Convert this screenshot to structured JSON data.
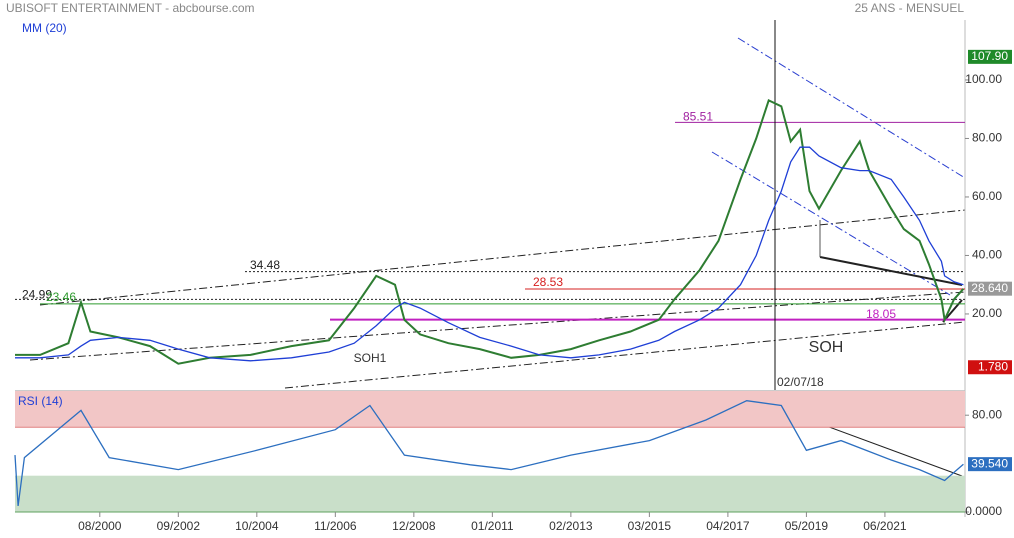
{
  "chart_data": [
    {
      "type": "line",
      "title": "UBISOFT ENTERTAINMENT - abcbourse.com",
      "subtitle": "25 ANS - MENSUEL",
      "x": [
        0,
        8,
        17,
        21,
        24,
        33,
        43,
        52,
        62,
        75,
        88,
        100,
        108,
        115,
        121,
        124,
        129,
        138,
        148,
        158,
        167,
        177,
        186,
        196,
        205,
        210,
        218,
        224,
        231,
        236,
        240,
        244,
        247,
        250,
        253,
        256,
        263,
        269,
        272,
        279,
        283,
        288,
        291,
        295,
        296,
        299,
        302
      ],
      "xlim": [
        0,
        302.5
      ],
      "xticks": [
        {
          "value": 27,
          "label": "08/2000"
        },
        {
          "value": 52,
          "label": "09/2002"
        },
        {
          "value": 77,
          "label": "10/2004"
        },
        {
          "value": 102,
          "label": "11/2006"
        },
        {
          "value": 127,
          "label": "12/2008"
        },
        {
          "value": 152,
          "label": "01/2011"
        },
        {
          "value": 177,
          "label": "02/2013"
        },
        {
          "value": 202,
          "label": "03/2015"
        },
        {
          "value": 227,
          "label": "04/2017"
        },
        {
          "value": 252,
          "label": "05/2019"
        },
        {
          "value": 277,
          "label": "06/2021"
        }
      ],
      "series": [
        {
          "color": "#2e7d32",
          "values": [
            6,
            6,
            10,
            24,
            14,
            12,
            9,
            3,
            5,
            6,
            9,
            11,
            22,
            33,
            30,
            18,
            13,
            10,
            8,
            5,
            6,
            8,
            11,
            14,
            18,
            25,
            35,
            45,
            66,
            80,
            93,
            91,
            79,
            83,
            62,
            56,
            69,
            79,
            69,
            56,
            49,
            45,
            37,
            25,
            18,
            25,
            28.6
          ]
        },
        {
          "name": "MM (20)",
          "color": "#1f3fd6",
          "values": [
            5,
            5,
            6,
            9,
            11,
            12,
            11,
            8,
            5,
            4,
            5,
            7,
            10,
            16,
            22,
            24,
            22,
            17,
            12,
            9,
            6,
            5,
            6,
            8,
            11,
            14,
            18,
            22,
            30,
            40,
            52,
            62,
            72,
            77,
            77,
            74,
            70,
            69,
            69,
            66,
            60,
            52,
            45,
            38,
            33,
            31,
            30
          ]
        }
      ],
      "ylim": [
        -6,
        120.5
      ],
      "yticks": [
        {
          "value": 20,
          "label": "20.00"
        },
        {
          "value": 40,
          "label": "40.00"
        },
        {
          "value": 60,
          "label": "60.00"
        },
        {
          "value": 80,
          "label": "80.00"
        },
        {
          "value": 100,
          "label": "100.00"
        }
      ],
      "levels": [
        {
          "value": 85.51,
          "label": "85.51",
          "color": "#a020a0"
        },
        {
          "value": 34.48,
          "label": "34.48",
          "color": "#222"
        },
        {
          "value": 28.53,
          "label": "28.53",
          "color": "#d62020"
        },
        {
          "value": 24.99,
          "label": "24.99",
          "color": "#222"
        },
        {
          "value": 23.46,
          "label": "23.46",
          "color": "#2e9a2e"
        },
        {
          "value": 18.05,
          "label": "18.05",
          "color": "#c020c0"
        }
      ],
      "tags": [
        {
          "value": 107.9,
          "label": "107.90",
          "color": "#1f8a2a"
        },
        {
          "value": 28.64,
          "label": "28.640",
          "color": "#999"
        },
        {
          "value": 1.78,
          "label": "1.780",
          "color": "#d01010"
        }
      ],
      "vline": {
        "x": 242,
        "label": "02/07/18"
      },
      "annotations": [
        "SOH1",
        "SOH"
      ]
    },
    {
      "type": "line",
      "title": "RSI (14)",
      "x": [
        0,
        1,
        3,
        21,
        30,
        52,
        77,
        102,
        113,
        124,
        145,
        158,
        177,
        202,
        220,
        233,
        244,
        252,
        263,
        279,
        288,
        296,
        302
      ],
      "series": [
        {
          "color": "#2c6fc0",
          "values": [
            47,
            5,
            45,
            84,
            45,
            35,
            51,
            68,
            88,
            47,
            39,
            35,
            47,
            59,
            76,
            92,
            88,
            51,
            59,
            43,
            35,
            26,
            39.54
          ]
        }
      ],
      "ylim": [
        0,
        100
      ],
      "yticks": [
        {
          "value": 0,
          "label": "0.0000"
        },
        {
          "value": 80,
          "label": "80.00"
        }
      ],
      "bands": [
        {
          "from": 70,
          "to": 100,
          "color": "#f2c6c6"
        },
        {
          "from": 0,
          "to": 30,
          "color": "#c9dfc9"
        }
      ],
      "tags": [
        {
          "value": 39.54,
          "label": "39.540",
          "color": "#2c6fc0"
        }
      ]
    }
  ]
}
